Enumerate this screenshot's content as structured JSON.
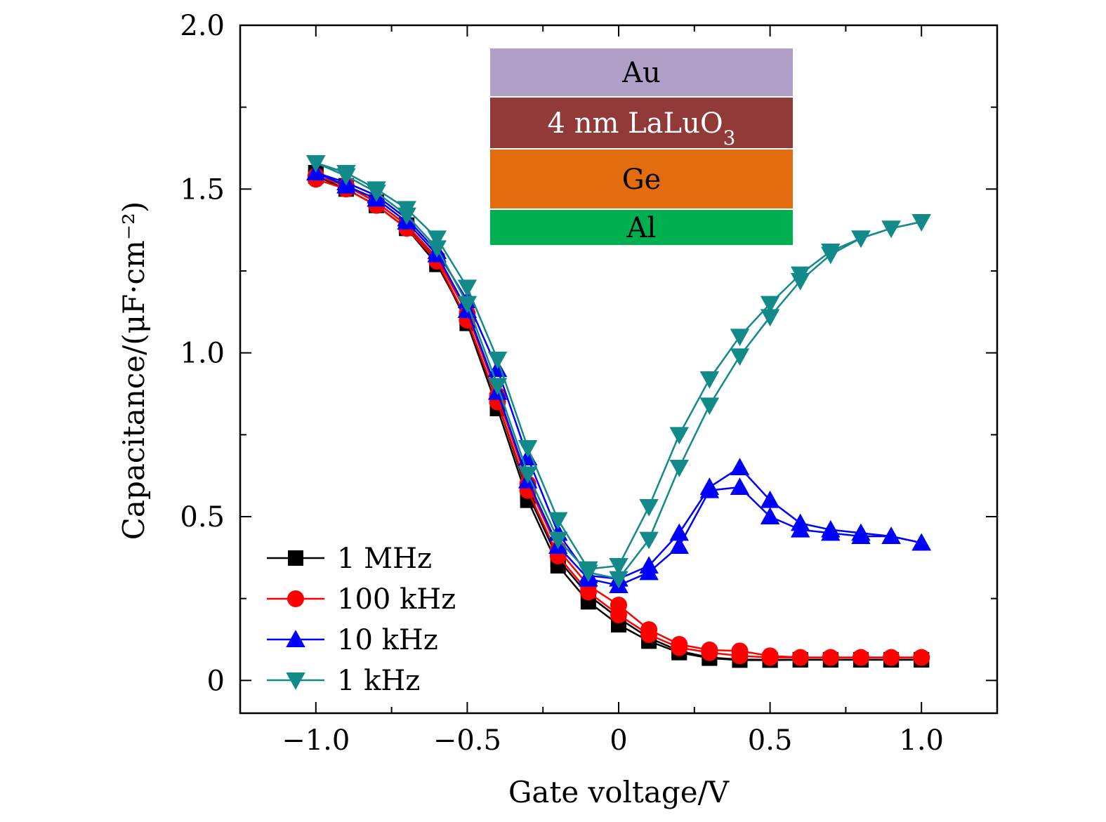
{
  "chart_data": {
    "type": "line",
    "xlabel": "Gate voltage/V",
    "ylabel": "Capacitance/(μF·cm⁻²)",
    "xlim": [
      -1.25,
      1.25
    ],
    "ylim": [
      -0.1,
      2.0
    ],
    "x_ticks": [
      {
        "v": -1.0,
        "label": "−1.0"
      },
      {
        "v": -0.5,
        "label": "−0.5"
      },
      {
        "v": 0.0,
        "label": "0"
      },
      {
        "v": 0.5,
        "label": "0.5"
      },
      {
        "v": 1.0,
        "label": "1.0"
      }
    ],
    "y_ticks": [
      {
        "v": 0.0,
        "label": "0"
      },
      {
        "v": 0.5,
        "label": "0.5"
      },
      {
        "v": 1.0,
        "label": "1.0"
      },
      {
        "v": 1.5,
        "label": "1.5"
      },
      {
        "v": 2.0,
        "label": "2.0"
      }
    ],
    "legend_position": "bottom-left",
    "series": [
      {
        "name": "1 MHz",
        "color": "#000000",
        "marker": "square",
        "forward": {
          "x": [
            -1.0,
            -0.9,
            -0.8,
            -0.7,
            -0.6,
            -0.5,
            -0.4,
            -0.3,
            -0.2,
            -0.1,
            0.0,
            0.1,
            0.2,
            0.3,
            0.4,
            0.5,
            0.6,
            0.7,
            0.8,
            0.9,
            1.0
          ],
          "y": [
            1.55,
            1.51,
            1.46,
            1.39,
            1.28,
            1.09,
            0.83,
            0.55,
            0.35,
            0.24,
            0.17,
            0.12,
            0.085,
            0.068,
            0.062,
            0.062,
            0.063,
            0.063,
            0.063,
            0.063,
            0.063
          ]
        },
        "reverse": {
          "x": [
            -1.0,
            -0.9,
            -0.8,
            -0.7,
            -0.6,
            -0.5,
            -0.4,
            -0.3,
            -0.2,
            -0.1,
            0.0,
            0.1,
            0.2,
            0.3,
            0.4,
            0.5,
            0.6,
            0.7,
            0.8,
            0.9,
            1.0
          ],
          "y": [
            1.54,
            1.5,
            1.45,
            1.38,
            1.27,
            1.1,
            0.85,
            0.57,
            0.37,
            0.26,
            0.19,
            0.13,
            0.09,
            0.07,
            0.064,
            0.063,
            0.063,
            0.063,
            0.063,
            0.063,
            0.063
          ]
        }
      },
      {
        "name": "100 kHz",
        "color": "#ff0000",
        "marker": "circle",
        "forward": {
          "x": [
            -1.0,
            -0.9,
            -0.8,
            -0.7,
            -0.6,
            -0.5,
            -0.4,
            -0.3,
            -0.2,
            -0.1,
            0.0,
            0.1,
            0.2,
            0.3,
            0.4,
            0.5,
            0.6,
            0.7,
            0.8,
            0.9,
            1.0
          ],
          "y": [
            1.53,
            1.5,
            1.45,
            1.38,
            1.28,
            1.1,
            0.85,
            0.58,
            0.38,
            0.27,
            0.2,
            0.14,
            0.1,
            0.085,
            0.075,
            0.07,
            0.07,
            0.07,
            0.07,
            0.07,
            0.07
          ]
        },
        "reverse": {
          "x": [
            -1.0,
            -0.9,
            -0.8,
            -0.7,
            -0.6,
            -0.5,
            -0.4,
            -0.3,
            -0.2,
            -0.1,
            0.0,
            0.1,
            0.2,
            0.3,
            0.4,
            0.5,
            0.6,
            0.7,
            0.8,
            0.9,
            1.0
          ],
          "y": [
            1.54,
            1.51,
            1.46,
            1.39,
            1.29,
            1.12,
            0.87,
            0.6,
            0.4,
            0.29,
            0.23,
            0.155,
            0.11,
            0.093,
            0.09,
            0.075,
            0.07,
            0.07,
            0.07,
            0.07,
            0.07
          ]
        }
      },
      {
        "name": "10 kHz",
        "color": "#0000ff",
        "marker": "triangle-up",
        "forward": {
          "x": [
            -1.0,
            -0.9,
            -0.8,
            -0.7,
            -0.6,
            -0.5,
            -0.4,
            -0.3,
            -0.2,
            -0.1,
            0.0,
            0.1,
            0.2,
            0.3,
            0.4,
            0.5,
            0.6,
            0.7,
            0.8,
            0.9,
            1.0
          ],
          "y": [
            1.55,
            1.51,
            1.47,
            1.4,
            1.3,
            1.13,
            0.88,
            0.61,
            0.41,
            0.31,
            0.29,
            0.33,
            0.41,
            0.58,
            0.59,
            0.5,
            0.46,
            0.45,
            0.44,
            0.44,
            0.42
          ]
        },
        "reverse": {
          "x": [
            -1.0,
            -0.9,
            -0.8,
            -0.7,
            -0.6,
            -0.5,
            -0.4,
            -0.3,
            -0.2,
            -0.1,
            0.0,
            0.1,
            0.2,
            0.3,
            0.4,
            0.5,
            0.6,
            0.7,
            0.8,
            0.9,
            1.0
          ],
          "y": [
            1.55,
            1.52,
            1.48,
            1.41,
            1.31,
            1.16,
            0.95,
            0.68,
            0.45,
            0.32,
            0.31,
            0.35,
            0.45,
            0.59,
            0.65,
            0.55,
            0.48,
            0.46,
            0.45,
            0.44,
            0.42
          ]
        }
      },
      {
        "name": "1 kHz",
        "color": "#138a8a",
        "marker": "triangle-down",
        "forward": {
          "x": [
            -1.0,
            -0.9,
            -0.8,
            -0.7,
            -0.6,
            -0.5,
            -0.4,
            -0.3,
            -0.2,
            -0.1,
            0.0,
            0.1,
            0.2,
            0.3,
            0.4,
            0.5,
            0.6,
            0.7,
            0.8,
            0.9,
            1.0
          ],
          "y": [
            1.58,
            1.54,
            1.49,
            1.42,
            1.32,
            1.15,
            0.9,
            0.63,
            0.43,
            0.33,
            0.31,
            0.43,
            0.65,
            0.84,
            0.99,
            1.11,
            1.22,
            1.3,
            1.35,
            1.38,
            1.4
          ]
        },
        "reverse": {
          "x": [
            -1.0,
            -0.9,
            -0.8,
            -0.7,
            -0.6,
            -0.5,
            -0.4,
            -0.3,
            -0.2,
            -0.1,
            0.0,
            0.1,
            0.2,
            0.3,
            0.4,
            0.5,
            0.6,
            0.7,
            0.8,
            0.9,
            1.0
          ],
          "y": [
            1.58,
            1.55,
            1.5,
            1.44,
            1.35,
            1.2,
            0.98,
            0.71,
            0.49,
            0.34,
            0.35,
            0.53,
            0.75,
            0.92,
            1.05,
            1.15,
            1.24,
            1.31,
            1.35,
            1.38,
            1.4
          ]
        }
      }
    ]
  },
  "inset": {
    "layers": [
      {
        "label": "Au",
        "color": "#b09fc6"
      },
      {
        "label": "4 nm LaLuO",
        "sub": "3",
        "color": "#923a37"
      },
      {
        "label": "Ge",
        "color": "#e36c0e"
      },
      {
        "label": "Al",
        "color": "#00b050"
      }
    ]
  }
}
